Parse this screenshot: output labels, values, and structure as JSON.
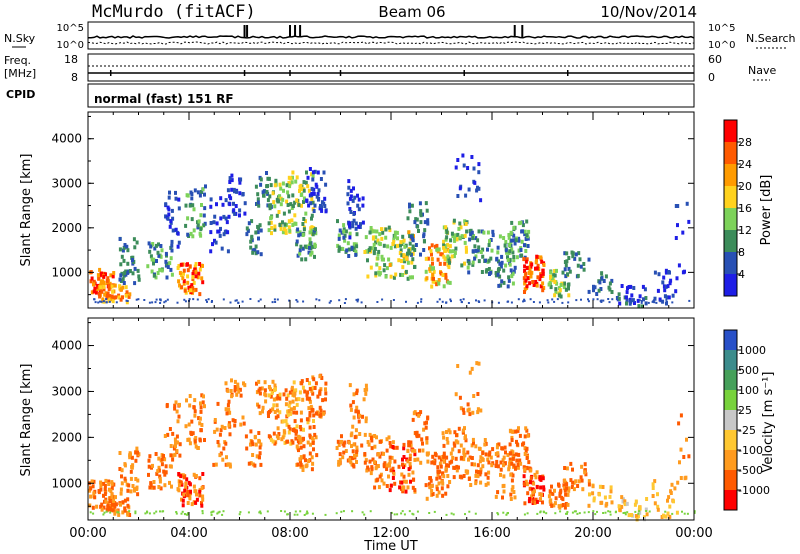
{
  "header": {
    "station": "McMurdo (fitACF)",
    "beam": "Beam 06",
    "date": "10/Nov/2014"
  },
  "top_panel": {
    "left_label": "N.Sky",
    "right_label": "N.Search",
    "left_ticks": [
      "10^5",
      "10^0"
    ],
    "right_ticks": [
      "10^5",
      "10^0"
    ]
  },
  "freq_panel": {
    "left_label_line1": "Freq.",
    "left_label_line2": "[MHz]",
    "right_label": "Nave",
    "left_ticks": [
      "18",
      "8"
    ],
    "right_ticks": [
      "60",
      "0"
    ]
  },
  "cpid_panel": {
    "label": "CPID",
    "text": "normal (fast) 151 RF"
  },
  "chart_data": [
    {
      "type": "heatmap",
      "name": "power",
      "ylabel": "Slant Range [km]",
      "yticks": [
        "1000",
        "2000",
        "3000",
        "4000"
      ],
      "ylim": [
        200,
        4600
      ],
      "xlim": [
        0,
        24
      ],
      "colorbar": {
        "label": "Power [dB]",
        "ticks": [
          "28",
          "24",
          "20",
          "16",
          "12",
          "8",
          "4"
        ],
        "colors": [
          "#ff0000",
          "#ff5a00",
          "#ff9b00",
          "#ffd21e",
          "#7dd25a",
          "#3c8c5a",
          "#2850b4",
          "#1e1ee6"
        ]
      }
    },
    {
      "type": "heatmap",
      "name": "velocity",
      "ylabel": "Slant Range [km]",
      "yticks": [
        "1000",
        "2000",
        "3000",
        "4000"
      ],
      "ylim": [
        200,
        4600
      ],
      "xlim": [
        0,
        24
      ],
      "colorbar": {
        "label": "Velocity [m s⁻¹]",
        "ticks": [
          "1000",
          "500",
          "100",
          "25",
          "-25",
          "-100",
          "-500",
          "-1000"
        ],
        "colors": [
          "#2850c8",
          "#3c8c8c",
          "#46a05a",
          "#78d23c",
          "#c8c8c8",
          "#ffc832",
          "#ff9b1e",
          "#ff5a00",
          "#ff0000"
        ]
      }
    }
  ],
  "x_axis": {
    "ticks": [
      "00:00",
      "04:00",
      "08:00",
      "12:00",
      "16:00",
      "20:00",
      "00:00"
    ],
    "label": "Time UT"
  }
}
